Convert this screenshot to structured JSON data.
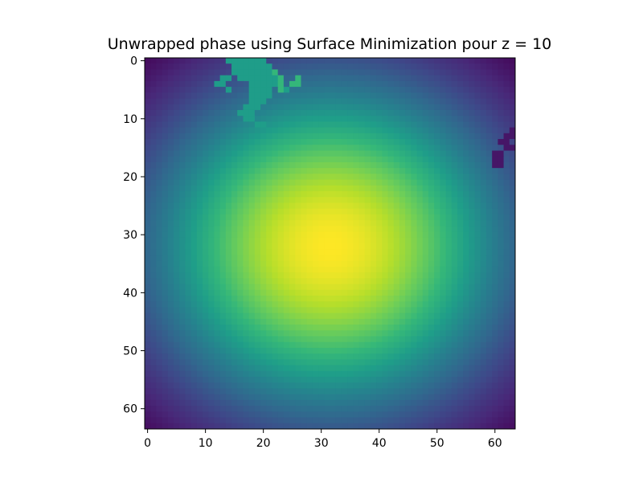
{
  "chart_data": {
    "type": "heatmap",
    "title": "Unwrapped phase using Surface Minimization pour z = 10",
    "xlabel": "",
    "ylabel": "",
    "grid_size": [
      64,
      64
    ],
    "xlim": [
      -0.5,
      63.5
    ],
    "ylim": [
      63.5,
      -0.5
    ],
    "x_ticks": [
      0,
      10,
      20,
      30,
      40,
      50,
      60
    ],
    "y_ticks": [
      0,
      10,
      20,
      30,
      40,
      50,
      60
    ],
    "x_tick_labels": [
      "0",
      "10",
      "20",
      "30",
      "40",
      "50",
      "60"
    ],
    "y_tick_labels": [
      "0",
      "10",
      "20",
      "30",
      "40",
      "50",
      "60"
    ],
    "colormap": "viridis",
    "colormap_stops": [
      "#440154",
      "#482878",
      "#3e4989",
      "#31688e",
      "#26828e",
      "#1f9e89",
      "#35b779",
      "#6ece58",
      "#b5de2b",
      "#fde725"
    ],
    "field": {
      "description": "smooth elliptical bump",
      "peak_row": 32,
      "peak_col": 31.5,
      "min_value": 0.0,
      "max_value": 1.0
    },
    "anomalies": [
      {
        "region": "top branch-like patch",
        "cells": [
          [
            0,
            14
          ],
          [
            0,
            15
          ],
          [
            0,
            16
          ],
          [
            0,
            17
          ],
          [
            0,
            18
          ],
          [
            0,
            19
          ],
          [
            0,
            20
          ],
          [
            1,
            15
          ],
          [
            1,
            16
          ],
          [
            1,
            17
          ],
          [
            1,
            18
          ],
          [
            1,
            19
          ],
          [
            1,
            20
          ],
          [
            1,
            21
          ],
          [
            2,
            15
          ],
          [
            2,
            16
          ],
          [
            2,
            17
          ],
          [
            2,
            18
          ],
          [
            2,
            19
          ],
          [
            2,
            20
          ],
          [
            2,
            21
          ],
          [
            3,
            13
          ],
          [
            3,
            14
          ],
          [
            3,
            16
          ],
          [
            3,
            17
          ],
          [
            3,
            18
          ],
          [
            3,
            19
          ],
          [
            3,
            20
          ],
          [
            3,
            21
          ],
          [
            3,
            22
          ],
          [
            4,
            12
          ],
          [
            4,
            13
          ],
          [
            4,
            18
          ],
          [
            4,
            19
          ],
          [
            4,
            20
          ],
          [
            4,
            21
          ],
          [
            4,
            22
          ],
          [
            5,
            14
          ],
          [
            5,
            18
          ],
          [
            5,
            19
          ],
          [
            5,
            20
          ],
          [
            5,
            21
          ],
          [
            5,
            24
          ],
          [
            6,
            18
          ],
          [
            6,
            19
          ],
          [
            6,
            20
          ],
          [
            6,
            21
          ],
          [
            7,
            18
          ],
          [
            7,
            19
          ],
          [
            7,
            20
          ],
          [
            8,
            17
          ],
          [
            8,
            18
          ],
          [
            8,
            19
          ],
          [
            9,
            16
          ],
          [
            9,
            17
          ],
          [
            9,
            18
          ],
          [
            10,
            17
          ],
          [
            10,
            18
          ],
          [
            11,
            19
          ],
          [
            11,
            20
          ]
        ],
        "value": 0.55
      },
      {
        "region": "top light cells",
        "cells": [
          [
            2,
            22
          ],
          [
            3,
            23
          ],
          [
            4,
            23
          ],
          [
            4,
            25
          ],
          [
            3,
            26
          ],
          [
            4,
            26
          ],
          [
            5,
            23
          ]
        ],
        "value": 0.66
      },
      {
        "region": "right edge low patch",
        "cells": [
          [
            12,
            63
          ],
          [
            13,
            62
          ],
          [
            13,
            63
          ],
          [
            14,
            61
          ],
          [
            14,
            62
          ],
          [
            15,
            62
          ],
          [
            15,
            63
          ],
          [
            16,
            60
          ],
          [
            16,
            61
          ],
          [
            17,
            60
          ],
          [
            17,
            61
          ],
          [
            18,
            60
          ],
          [
            18,
            61
          ]
        ],
        "value": 0.06
      }
    ]
  }
}
